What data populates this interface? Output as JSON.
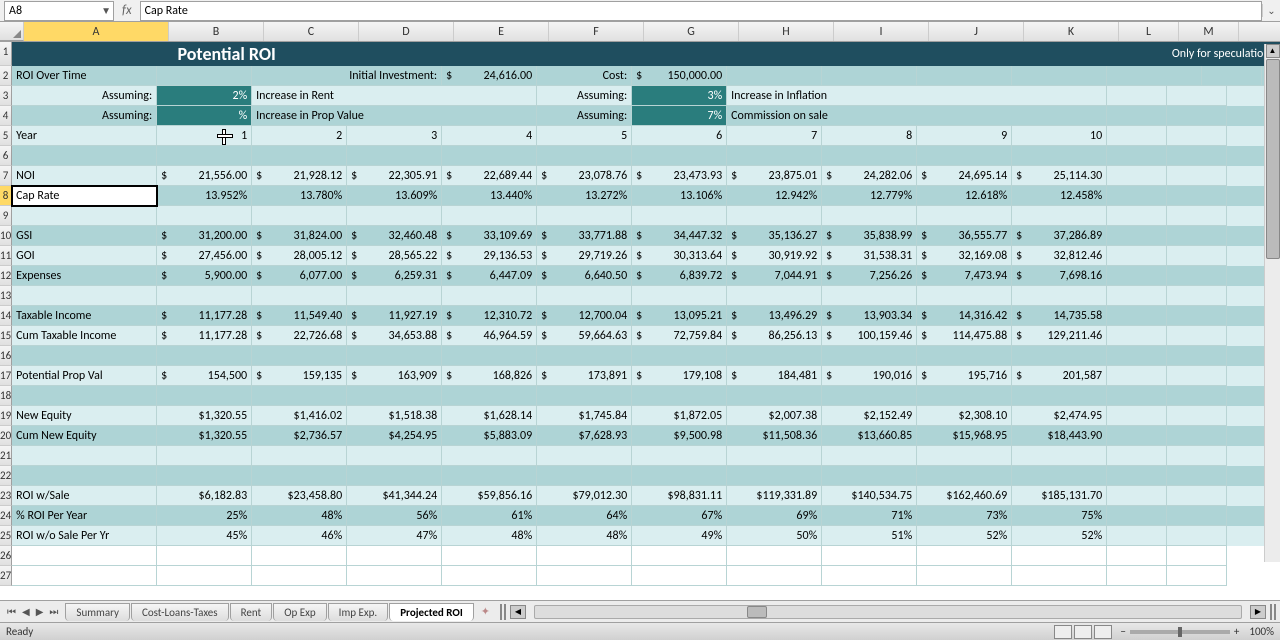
{
  "formula_bar": {
    "cell_ref": "A8",
    "fx_label": "fx",
    "formula": "Cap Rate"
  },
  "columns": [
    "A",
    "B",
    "C",
    "D",
    "E",
    "F",
    "G",
    "H",
    "I",
    "J",
    "K",
    "L",
    "M"
  ],
  "selected_col": "A",
  "selected_row": 8,
  "title_row": {
    "main": "Potential ROI",
    "right": "Only for speculation purposes"
  },
  "header2": {
    "label": "ROI Over Time",
    "initial_label": "Initial Investment:",
    "initial_sym": "$",
    "initial_val": "24,616.00",
    "cost_label": "Cost:",
    "cost_sym": "$",
    "cost_val": "150,000.00"
  },
  "assume": [
    {
      "lbl": "Assuming:",
      "pct": "2%",
      "txt": "Increase in Rent",
      "lbl2": "Assuming:",
      "pct2": "3%",
      "txt2": "Increase in Inflation"
    },
    {
      "lbl": "Assuming:",
      "pct": " %",
      "txt": "Increase in Prop Value",
      "lbl2": "Assuming:",
      "pct2": "7%",
      "txt2": "Commission on sale"
    }
  ],
  "year": {
    "lbl": "Year",
    "vals": [
      "1",
      "2",
      "3",
      "4",
      "5",
      "6",
      "7",
      "8",
      "9",
      "10"
    ]
  },
  "rows": [
    {
      "n": 7,
      "lbl": "NOI",
      "fmt": "money",
      "vals": [
        "21,556.00",
        "21,928.12",
        "22,305.91",
        "22,689.44",
        "23,078.76",
        "23,473.93",
        "23,875.01",
        "24,282.06",
        "24,695.14",
        "25,114.30"
      ]
    },
    {
      "n": 8,
      "lbl": "Cap Rate",
      "fmt": "pct",
      "vals": [
        "13.952%",
        "13.780%",
        "13.609%",
        "13.440%",
        "13.272%",
        "13.106%",
        "12.942%",
        "12.779%",
        "12.618%",
        "12.458%"
      ],
      "selected": true
    },
    {
      "n": 9,
      "lbl": "",
      "fmt": "",
      "vals": [
        "",
        "",
        "",
        "",
        "",
        "",
        "",
        "",
        "",
        ""
      ]
    },
    {
      "n": 10,
      "lbl": "GSI",
      "fmt": "money",
      "vals": [
        "31,200.00",
        "31,824.00",
        "32,460.48",
        "33,109.69",
        "33,771.88",
        "34,447.32",
        "35,136.27",
        "35,838.99",
        "36,555.77",
        "37,286.89"
      ]
    },
    {
      "n": 11,
      "lbl": "GOI",
      "fmt": "money",
      "vals": [
        "27,456.00",
        "28,005.12",
        "28,565.22",
        "29,136.53",
        "29,719.26",
        "30,313.64",
        "30,919.92",
        "31,538.31",
        "32,169.08",
        "32,812.46"
      ]
    },
    {
      "n": 12,
      "lbl": "Expenses",
      "fmt": "money",
      "vals": [
        "5,900.00",
        "6,077.00",
        "6,259.31",
        "6,447.09",
        "6,640.50",
        "6,839.72",
        "7,044.91",
        "7,256.26",
        "7,473.94",
        "7,698.16"
      ]
    },
    {
      "n": 13,
      "lbl": "",
      "fmt": "",
      "vals": [
        "",
        "",
        "",
        "",
        "",
        "",
        "",
        "",
        "",
        ""
      ]
    },
    {
      "n": 14,
      "lbl": "Taxable Income",
      "fmt": "money",
      "vals": [
        "11,177.28",
        "11,549.40",
        "11,927.19",
        "12,310.72",
        "12,700.04",
        "13,095.21",
        "13,496.29",
        "13,903.34",
        "14,316.42",
        "14,735.58"
      ]
    },
    {
      "n": 15,
      "lbl": "Cum Taxable Income",
      "fmt": "money",
      "vals": [
        "11,177.28",
        "22,726.68",
        "34,653.88",
        "46,964.59",
        "59,664.63",
        "72,759.84",
        "86,256.13",
        "100,159.46",
        "114,475.88",
        "129,211.46"
      ]
    },
    {
      "n": 16,
      "lbl": "",
      "fmt": "",
      "vals": [
        "",
        "",
        "",
        "",
        "",
        "",
        "",
        "",
        "",
        ""
      ]
    },
    {
      "n": 17,
      "lbl": "Potential Prop Val",
      "fmt": "money-nodecimal",
      "vals": [
        "154,500",
        "159,135",
        "163,909",
        "168,826",
        "173,891",
        "179,108",
        "184,481",
        "190,016",
        "195,716",
        "201,587"
      ]
    },
    {
      "n": 18,
      "lbl": "",
      "fmt": "",
      "vals": [
        "",
        "",
        "",
        "",
        "",
        "",
        "",
        "",
        "",
        ""
      ]
    },
    {
      "n": 19,
      "lbl": "New Equity",
      "fmt": "dollar",
      "vals": [
        "$1,320.55",
        "$1,416.02",
        "$1,518.38",
        "$1,628.14",
        "$1,745.84",
        "$1,872.05",
        "$2,007.38",
        "$2,152.49",
        "$2,308.10",
        "$2,474.95"
      ]
    },
    {
      "n": 20,
      "lbl": "Cum New Equity",
      "fmt": "dollar",
      "vals": [
        "$1,320.55",
        "$2,736.57",
        "$4,254.95",
        "$5,883.09",
        "$7,628.93",
        "$9,500.98",
        "$11,508.36",
        "$13,660.85",
        "$15,968.95",
        "$18,443.90"
      ]
    },
    {
      "n": 21,
      "lbl": "",
      "fmt": "",
      "vals": [
        "",
        "",
        "",
        "",
        "",
        "",
        "",
        "",
        "",
        ""
      ]
    },
    {
      "n": 22,
      "lbl": "",
      "fmt": "",
      "vals": [
        "",
        "",
        "",
        "",
        "",
        "",
        "",
        "",
        "",
        ""
      ]
    },
    {
      "n": 23,
      "lbl": "ROI w/Sale",
      "fmt": "dollar",
      "vals": [
        "$6,182.83",
        "$23,458.80",
        "$41,344.24",
        "$59,856.16",
        "$79,012.30",
        "$98,831.11",
        "$119,331.89",
        "$140,534.75",
        "$162,460.69",
        "$185,131.70"
      ]
    },
    {
      "n": 24,
      "lbl": "% ROI Per Year",
      "fmt": "pct",
      "vals": [
        "25%",
        "48%",
        "56%",
        "61%",
        "64%",
        "67%",
        "69%",
        "71%",
        "73%",
        "75%"
      ]
    },
    {
      "n": 25,
      "lbl": "ROI w/o Sale Per Yr",
      "fmt": "pct",
      "vals": [
        "45%",
        "46%",
        "47%",
        "48%",
        "48%",
        "49%",
        "50%",
        "51%",
        "52%",
        "52%"
      ]
    },
    {
      "n": 26,
      "lbl": "",
      "fmt": "",
      "vals": [
        "",
        "",
        "",
        "",
        "",
        "",
        "",
        "",
        "",
        ""
      ],
      "white": true
    },
    {
      "n": 27,
      "lbl": "",
      "fmt": "",
      "vals": [
        "",
        "",
        "",
        "",
        "",
        "",
        "",
        "",
        "",
        ""
      ],
      "white": true
    }
  ],
  "tabs": [
    "Summary",
    "Cost-Loans-Taxes",
    "Rent",
    "Op Exp",
    "Imp Exp.",
    "Projected ROI"
  ],
  "active_tab": 5,
  "status": {
    "ready": "Ready",
    "zoom": "100%"
  },
  "cursor_pos": {
    "row": 4,
    "col": "B"
  },
  "colors": {
    "title_bg": "#1f4e5f",
    "light": "#daeef0",
    "dark": "#aed4d6",
    "teal": "#2a7d7d",
    "sel": "#ffd966"
  }
}
